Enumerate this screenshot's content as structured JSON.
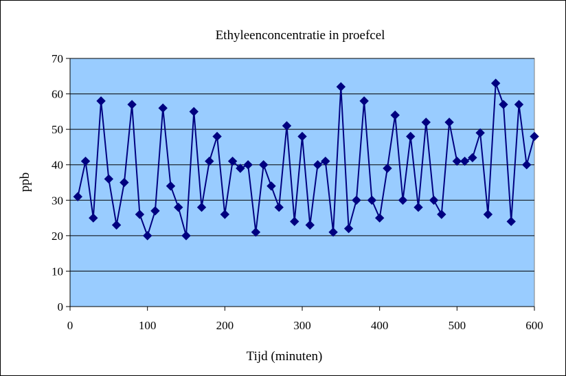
{
  "chart_data": {
    "type": "line",
    "title": "Ethyleenconcentratie in proefcel",
    "xlabel": "Tijd (minuten)",
    "ylabel": "ppb",
    "xlim": [
      0,
      600
    ],
    "ylim": [
      0,
      70
    ],
    "xticks": [
      0,
      100,
      200,
      300,
      400,
      500,
      600
    ],
    "yticks": [
      0,
      10,
      20,
      30,
      40,
      50,
      60,
      70
    ],
    "grid": true,
    "legend": "none",
    "colors": {
      "plot_background": "#99CCFF",
      "series": "#000080",
      "grid": "#000000"
    },
    "series": [
      {
        "marker": "diamond",
        "x": [
          10,
          20,
          30,
          40,
          50,
          60,
          70,
          80,
          90,
          100,
          110,
          120,
          130,
          140,
          150,
          160,
          170,
          180,
          190,
          200,
          210,
          220,
          230,
          240,
          250,
          260,
          270,
          280,
          290,
          300,
          310,
          320,
          330,
          340,
          350,
          360,
          370,
          380,
          390,
          400,
          410,
          420,
          430,
          440,
          450,
          460,
          470,
          480,
          490,
          500,
          510,
          520,
          530,
          540,
          550,
          560,
          570,
          580,
          590,
          600
        ],
        "y": [
          31,
          41,
          25,
          58,
          36,
          23,
          35,
          57,
          26,
          20,
          27,
          56,
          34,
          28,
          20,
          55,
          28,
          41,
          48,
          26,
          41,
          39,
          40,
          21,
          40,
          34,
          28,
          51,
          24,
          48,
          23,
          40,
          41,
          21,
          62,
          22,
          30,
          58,
          30,
          25,
          39,
          54,
          30,
          48,
          28,
          52,
          30,
          26,
          52,
          41,
          41,
          42,
          49,
          26,
          63,
          57,
          24,
          57,
          40,
          48
        ]
      }
    ]
  }
}
